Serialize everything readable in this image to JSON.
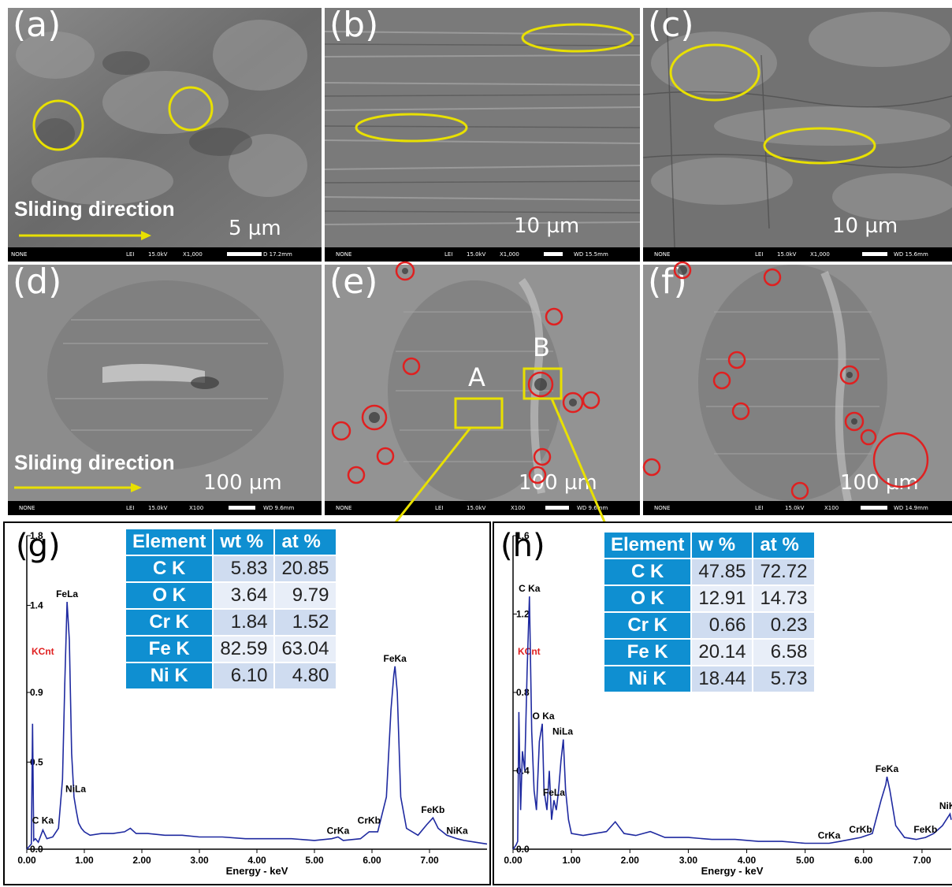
{
  "panels": {
    "a": {
      "letter": "(a)",
      "scale": "5 µm",
      "sliding": "Sliding direction",
      "footer": {
        "none": "NONE",
        "lei": "LEI",
        "kv": "15.0kV",
        "mag": "X1,000",
        "wd": "D 17.2mm"
      }
    },
    "b": {
      "letter": "(b)",
      "scale": "10 µm",
      "footer": {
        "none": "NONE",
        "lei": "LEI",
        "kv": "15.0kV",
        "mag": "X1,000",
        "wd": "WD 15.5mm"
      }
    },
    "c": {
      "letter": "(c)",
      "scale": "10 µm",
      "footer": {
        "none": "NONE",
        "lei": "LEI",
        "kv": "15.0kV",
        "mag": "X1,000",
        "wd": "WD 15.6mm"
      }
    },
    "d": {
      "letter": "(d)",
      "scale": "100 µm",
      "sliding": "Sliding direction",
      "footer": {
        "none": "NONE",
        "lei": "LEI",
        "kv": "15.0kV",
        "mag": "X100",
        "wd": "WD 9.6mm"
      }
    },
    "e": {
      "letter": "(e)",
      "scale": "100 µm",
      "label_a": "A",
      "label_b": "B",
      "footer": {
        "none": "NONE",
        "lei": "LEI",
        "kv": "15.0kV",
        "mag": "X100",
        "wd": "WD 9.6mm"
      }
    },
    "f": {
      "letter": "(f)",
      "scale": "100 µm",
      "footer": {
        "none": "NONE",
        "lei": "LEI",
        "kv": "15.0kV",
        "mag": "X100",
        "wd": "WD 14.9mm"
      }
    }
  },
  "colors": {
    "highlight_yellow": "#e8e000",
    "pit_red": "#e02020",
    "table_header": "#0f8fd1",
    "spectrum_line": "#1f2aa0",
    "kcnt_red": "#e02020"
  },
  "chart_data": [
    {
      "type": "line",
      "panel": "(g)",
      "title": "",
      "xlabel": "Energy - keV",
      "ylabel": "KCnt",
      "xlim": [
        0,
        8
      ],
      "ylim": [
        0,
        1.8
      ],
      "x_ticks": [
        "0.00",
        "1.00",
        "2.00",
        "3.00",
        "4.00",
        "5.00",
        "6.00",
        "7.00"
      ],
      "y_ticks": [
        "0.0",
        "0.5",
        "0.9",
        "1.4",
        "1.8"
      ],
      "peaks": [
        {
          "label": "C Ka",
          "x": 0.28,
          "y": 0.12
        },
        {
          "label": "FeLa",
          "x": 0.7,
          "y": 1.42
        },
        {
          "label": "NiLa",
          "x": 0.85,
          "y": 0.3
        },
        {
          "label": "CrKa",
          "x": 5.41,
          "y": 0.06
        },
        {
          "label": "CrKb",
          "x": 5.95,
          "y": 0.12
        },
        {
          "label": "FeKa",
          "x": 6.4,
          "y": 1.05
        },
        {
          "label": "FeKb",
          "x": 7.06,
          "y": 0.18
        },
        {
          "label": "NiKa",
          "x": 7.48,
          "y": 0.06
        }
      ],
      "spectrum_x": [
        0.0,
        0.08,
        0.1,
        0.12,
        0.15,
        0.2,
        0.28,
        0.35,
        0.45,
        0.55,
        0.62,
        0.66,
        0.7,
        0.74,
        0.78,
        0.82,
        0.86,
        0.9,
        0.95,
        1.0,
        1.1,
        1.3,
        1.5,
        1.7,
        1.8,
        1.9,
        2.1,
        2.4,
        2.7,
        3.0,
        3.4,
        3.8,
        4.2,
        4.6,
        5.0,
        5.3,
        5.41,
        5.5,
        5.8,
        5.95,
        6.1,
        6.25,
        6.33,
        6.38,
        6.4,
        6.44,
        6.5,
        6.6,
        6.8,
        6.95,
        7.06,
        7.15,
        7.3,
        7.48,
        7.6,
        7.8,
        8.0
      ],
      "spectrum_y": [
        0.0,
        0.03,
        0.72,
        0.05,
        0.06,
        0.04,
        0.11,
        0.06,
        0.07,
        0.12,
        0.4,
        0.95,
        1.42,
        1.2,
        0.55,
        0.3,
        0.22,
        0.15,
        0.12,
        0.1,
        0.08,
        0.09,
        0.09,
        0.1,
        0.12,
        0.09,
        0.09,
        0.08,
        0.08,
        0.07,
        0.07,
        0.06,
        0.06,
        0.06,
        0.05,
        0.06,
        0.07,
        0.05,
        0.06,
        0.1,
        0.1,
        0.3,
        0.8,
        1.0,
        1.05,
        0.9,
        0.3,
        0.12,
        0.08,
        0.14,
        0.18,
        0.12,
        0.08,
        0.06,
        0.05,
        0.04,
        0.03
      ],
      "table": {
        "headers": [
          "Element",
          "wt %",
          "at %"
        ],
        "rows": [
          [
            "C K",
            "5.83",
            "20.85"
          ],
          [
            "O K",
            "3.64",
            "9.79"
          ],
          [
            "Cr K",
            "1.84",
            "1.52"
          ],
          [
            "Fe K",
            "82.59",
            "63.04"
          ],
          [
            "Ni K",
            "6.10",
            "4.80"
          ]
        ]
      }
    },
    {
      "type": "line",
      "panel": "(h)",
      "title": "",
      "xlabel": "Energy - keV",
      "ylabel": "KCnt",
      "xlim": [
        0,
        7.5
      ],
      "ylim": [
        0,
        1.6
      ],
      "x_ticks": [
        "0.00",
        "1.00",
        "2.00",
        "3.00",
        "4.00",
        "5.00",
        "6.00",
        "7.00"
      ],
      "y_ticks": [
        "0.0",
        "0.4",
        "0.8",
        "1.2",
        "1.6"
      ],
      "peaks": [
        {
          "label": "C Ka",
          "x": 0.28,
          "y": 1.29
        },
        {
          "label": "O Ka",
          "x": 0.52,
          "y": 0.64
        },
        {
          "label": "NiLa",
          "x": 0.85,
          "y": 0.56
        },
        {
          "label": "FeLa",
          "x": 0.7,
          "y": 0.25
        },
        {
          "label": "CrKa",
          "x": 5.41,
          "y": 0.03
        },
        {
          "label": "CrKb",
          "x": 5.95,
          "y": 0.06
        },
        {
          "label": "FeKa",
          "x": 6.4,
          "y": 0.37
        },
        {
          "label": "FeKb",
          "x": 7.06,
          "y": 0.06
        },
        {
          "label": "NiKa",
          "x": 7.48,
          "y": 0.18
        }
      ],
      "spectrum_x": [
        0.0,
        0.05,
        0.08,
        0.1,
        0.13,
        0.16,
        0.2,
        0.24,
        0.28,
        0.32,
        0.36,
        0.4,
        0.45,
        0.5,
        0.53,
        0.58,
        0.62,
        0.66,
        0.7,
        0.74,
        0.78,
        0.82,
        0.86,
        0.9,
        0.95,
        1.0,
        1.2,
        1.4,
        1.6,
        1.75,
        1.9,
        2.1,
        2.35,
        2.6,
        3.0,
        3.4,
        3.8,
        4.2,
        4.6,
        5.0,
        5.41,
        5.6,
        5.95,
        6.15,
        6.3,
        6.38,
        6.4,
        6.45,
        6.55,
        6.7,
        6.9,
        7.06,
        7.2,
        7.35,
        7.48,
        7.5
      ],
      "spectrum_y": [
        0.0,
        0.02,
        0.04,
        0.7,
        0.2,
        0.5,
        0.4,
        0.9,
        1.29,
        0.6,
        0.3,
        0.2,
        0.55,
        0.64,
        0.3,
        0.2,
        0.4,
        0.15,
        0.25,
        0.2,
        0.3,
        0.45,
        0.56,
        0.3,
        0.15,
        0.08,
        0.07,
        0.08,
        0.09,
        0.14,
        0.08,
        0.07,
        0.09,
        0.06,
        0.06,
        0.05,
        0.05,
        0.04,
        0.04,
        0.03,
        0.03,
        0.04,
        0.06,
        0.08,
        0.25,
        0.33,
        0.37,
        0.3,
        0.12,
        0.06,
        0.05,
        0.06,
        0.08,
        0.12,
        0.18,
        0.15
      ],
      "table": {
        "headers": [
          "Element",
          "w %",
          "at %"
        ],
        "rows": [
          [
            "C K",
            "47.85",
            "72.72"
          ],
          [
            "O K",
            "12.91",
            "14.73"
          ],
          [
            "Cr K",
            "0.66",
            "0.23"
          ],
          [
            "Fe K",
            "20.14",
            "6.58"
          ],
          [
            "Ni K",
            "18.44",
            "5.73"
          ]
        ]
      }
    }
  ]
}
